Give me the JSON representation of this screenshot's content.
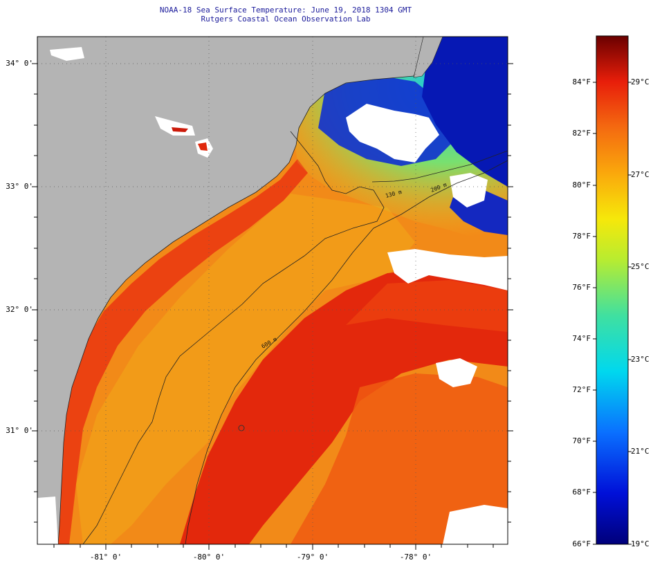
{
  "title": {
    "line1": "NOAA-18 Sea Surface Temperature:  June 19, 2018 1304 GMT",
    "line2": "Rutgers Coastal Ocean Observation Lab"
  },
  "map": {
    "latitude_labels": [
      "34° 0'",
      "33° 0'",
      "32° 0'",
      "31° 0'"
    ],
    "longitude_labels": [
      "-81° 0'",
      "-80° 0'",
      "-79° 0'",
      "-78° 0'"
    ],
    "isobath_labels": [
      "130 m",
      "200 m",
      "600 m"
    ],
    "colors": {
      "land": "#b4b4b4",
      "cloud": "#ffffff",
      "warm_water": "#e01f0a",
      "shelf_water": "#f27a12",
      "cool_water": "#2ad6d6",
      "cold_water": "#0718b0"
    }
  },
  "colorbar": {
    "range_f": [
      66,
      86
    ],
    "range_c": [
      19,
      30
    ],
    "fahrenheit_labels": [
      "84°F",
      "82°F",
      "80°F",
      "78°F",
      "76°F",
      "74°F",
      "72°F",
      "70°F",
      "68°F",
      "66°F"
    ],
    "celsius_labels": [
      "29°C",
      "27°C",
      "25°C",
      "23°C",
      "21°C",
      "19°C"
    ]
  }
}
